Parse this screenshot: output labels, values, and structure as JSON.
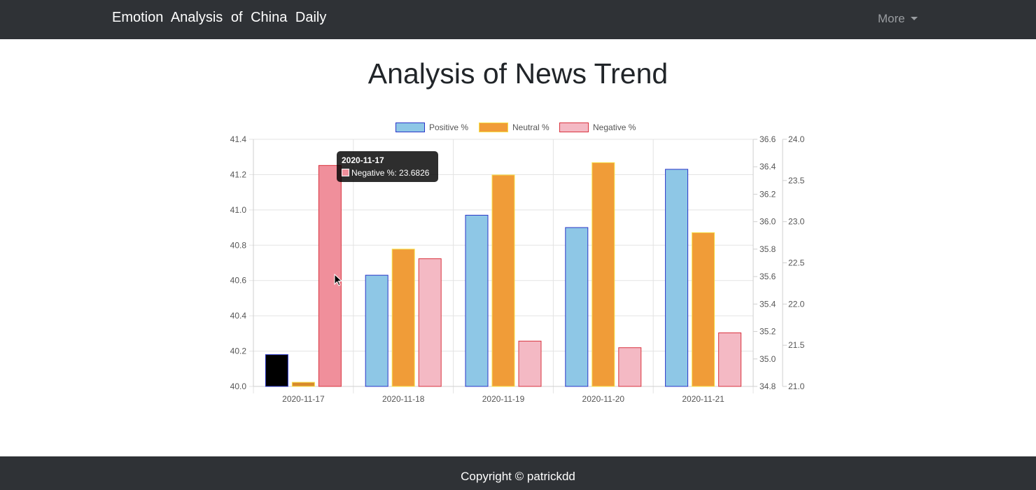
{
  "navbar": {
    "brand": "Emotion Analysis of China Daily",
    "more_label": "More"
  },
  "page": {
    "title": "Analysis of News Trend"
  },
  "tooltip": {
    "title": "2020-11-17",
    "label": "Negative %",
    "value": "23.6826"
  },
  "footer": {
    "text": "Copyright © patrickdd"
  },
  "colors": {
    "navbar_bg": "#2f3236",
    "positive_fill": "#8ec7e6",
    "positive_border": "#2a36c8",
    "neutral_fill": "#f09c38",
    "neutral_border": "#f7e04b",
    "negative_fill": "#f4b9c4",
    "negative_border": "#d9343f",
    "positive_hover_fill": "#000000",
    "neutral_hover_fill": "#d88a2c",
    "negative_hover_fill": "#f08f9b"
  },
  "chart_data": {
    "type": "bar",
    "categories": [
      "2020-11-17",
      "2020-11-18",
      "2020-11-19",
      "2020-11-20",
      "2020-11-21"
    ],
    "series": [
      {
        "name": "Positive %",
        "axis": "y-left",
        "values": [
          40.18,
          40.63,
          40.97,
          40.9,
          41.23
        ]
      },
      {
        "name": "Neutral %",
        "axis": "y-middle",
        "values": [
          34.83,
          35.8,
          36.34,
          36.43,
          35.92
        ]
      },
      {
        "name": "Negative %",
        "axis": "y-right",
        "values": [
          23.6826,
          22.55,
          21.55,
          21.47,
          21.65
        ]
      }
    ],
    "axes": {
      "y_left": {
        "ylim": [
          40.0,
          41.4
        ],
        "ticks": [
          "40.0",
          "40.2",
          "40.4",
          "40.6",
          "40.8",
          "41.0",
          "41.2",
          "41.4"
        ]
      },
      "y_middle": {
        "ylim": [
          34.8,
          36.6
        ],
        "ticks": [
          "34.8",
          "35.0",
          "35.2",
          "35.4",
          "35.6",
          "35.8",
          "36.0",
          "36.2",
          "36.4",
          "36.6"
        ]
      },
      "y_right": {
        "ylim": [
          21.0,
          24.0
        ],
        "ticks": [
          "21.0",
          "21.5",
          "22.0",
          "22.5",
          "23.0",
          "23.5",
          "24.0"
        ]
      }
    },
    "legend_position": "top",
    "grid": true,
    "highlighted_category": "2020-11-17"
  }
}
